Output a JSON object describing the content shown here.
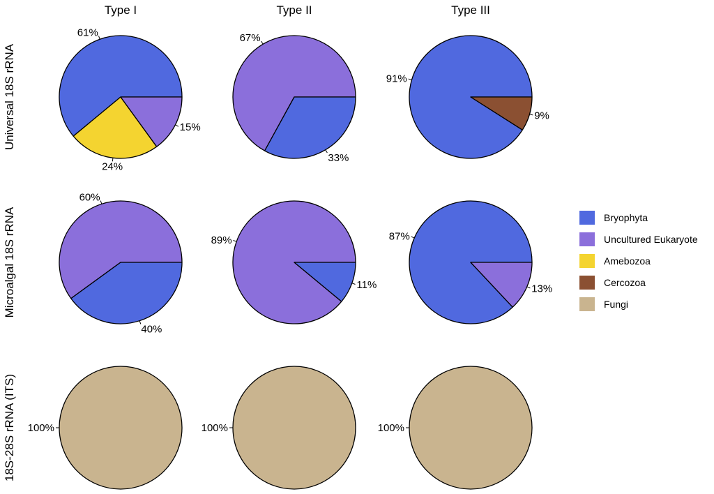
{
  "chart_data": {
    "type": "pie",
    "column_titles": [
      "Type I",
      "Type II",
      "Type III"
    ],
    "row_titles": [
      "Universal 18S rRNA",
      "Microalgal 18S rRNA",
      "18S-28S rRNA (ITS)"
    ],
    "legend": [
      {
        "name": "Bryophyta",
        "color": "#5069df"
      },
      {
        "name": "Uncultured Eukaryote",
        "color": "#8b6fdb"
      },
      {
        "name": "Amebozoa",
        "color": "#f4d430"
      },
      {
        "name": "Cercozoa",
        "color": "#8b5032"
      },
      {
        "name": "Fungi",
        "color": "#c9b48f"
      }
    ],
    "pies": [
      {
        "row": 0,
        "col": 0,
        "slices": [
          {
            "category": "Bryophyta",
            "value": 61,
            "label": "61%"
          },
          {
            "category": "Amebozoa",
            "value": 24,
            "label": "24%"
          },
          {
            "category": "Uncultured Eukaryote",
            "value": 15,
            "label": "15%"
          }
        ]
      },
      {
        "row": 0,
        "col": 1,
        "slices": [
          {
            "category": "Uncultured Eukaryote",
            "value": 67,
            "label": "67%"
          },
          {
            "category": "Bryophyta",
            "value": 33,
            "label": "33%"
          }
        ]
      },
      {
        "row": 0,
        "col": 2,
        "slices": [
          {
            "category": "Bryophyta",
            "value": 91,
            "label": "91%"
          },
          {
            "category": "Cercozoa",
            "value": 9,
            "label": "9%"
          }
        ]
      },
      {
        "row": 1,
        "col": 0,
        "slices": [
          {
            "category": "Uncultured Eukaryote",
            "value": 60,
            "label": "60%"
          },
          {
            "category": "Bryophyta",
            "value": 40,
            "label": "40%"
          }
        ]
      },
      {
        "row": 1,
        "col": 1,
        "slices": [
          {
            "category": "Uncultured Eukaryote",
            "value": 89,
            "label": "89%"
          },
          {
            "category": "Bryophyta",
            "value": 11,
            "label": "11%"
          }
        ]
      },
      {
        "row": 1,
        "col": 2,
        "slices": [
          {
            "category": "Bryophyta",
            "value": 87,
            "label": "87%"
          },
          {
            "category": "Uncultured Eukaryote",
            "value": 13,
            "label": "13%"
          }
        ]
      },
      {
        "row": 2,
        "col": 0,
        "slices": [
          {
            "category": "Fungi",
            "value": 100,
            "label": "100%"
          }
        ]
      },
      {
        "row": 2,
        "col": 1,
        "slices": [
          {
            "category": "Fungi",
            "value": 100,
            "label": "100%"
          }
        ]
      },
      {
        "row": 2,
        "col": 2,
        "slices": [
          {
            "category": "Fungi",
            "value": 100,
            "label": "100%"
          }
        ]
      }
    ]
  }
}
